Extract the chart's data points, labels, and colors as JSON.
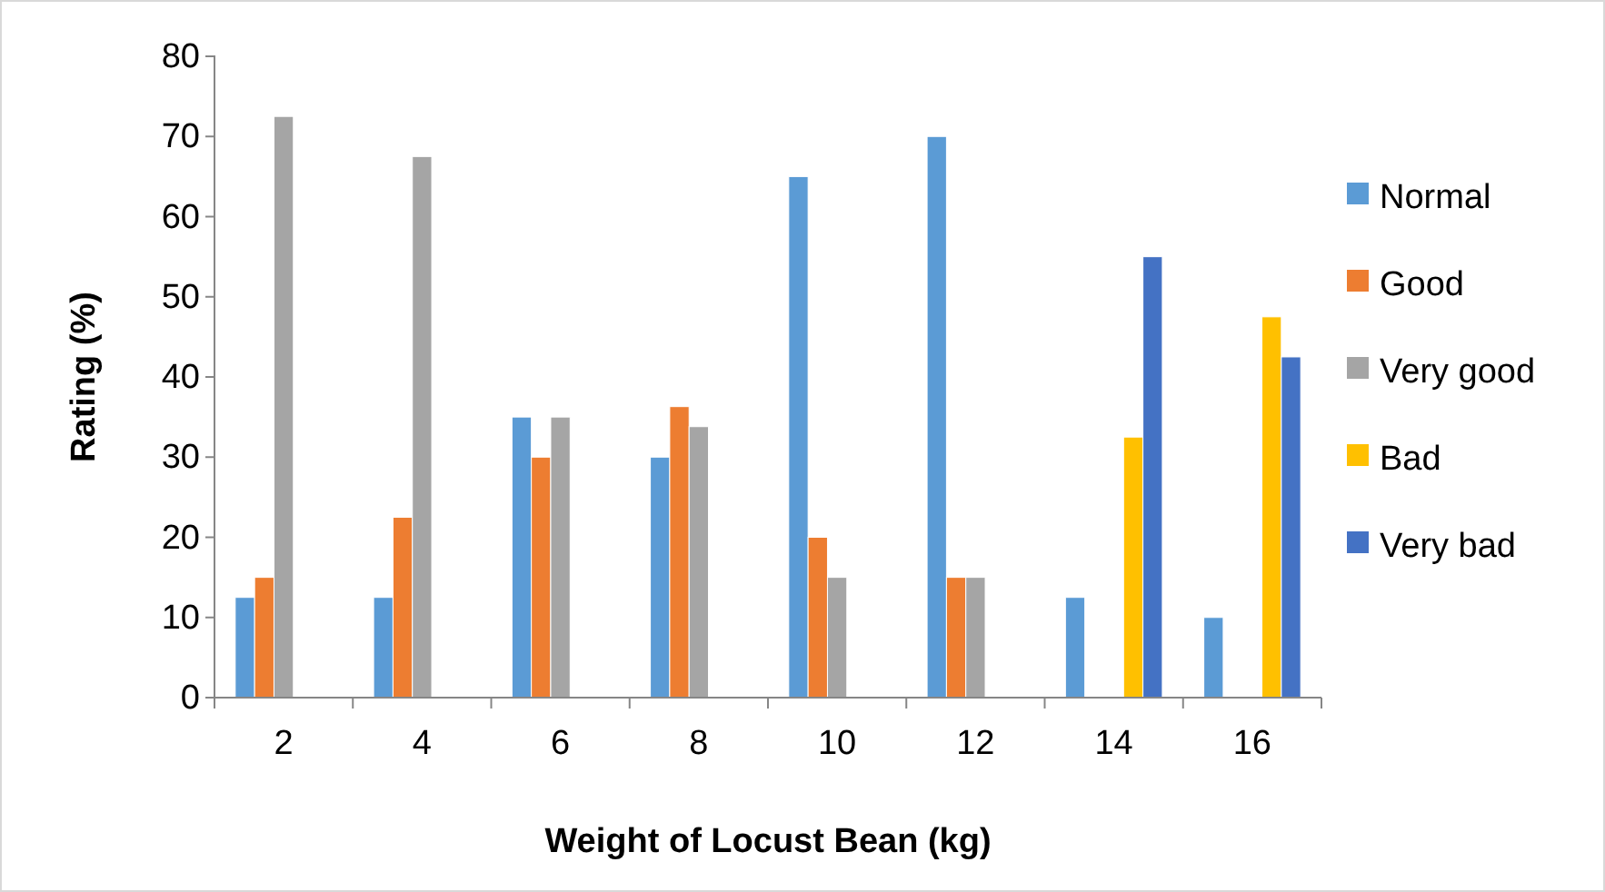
{
  "chart_data": {
    "type": "bar",
    "xlabel": "Weight of Locust Bean (kg)",
    "ylabel": "Rating (%)",
    "categories": [
      "2",
      "4",
      "6",
      "8",
      "10",
      "12",
      "14",
      "16"
    ],
    "series": [
      {
        "name": "Normal",
        "color": "#5b9bd5",
        "values": [
          12.5,
          12.5,
          35,
          30,
          65,
          70,
          12.5,
          10
        ]
      },
      {
        "name": "Good",
        "color": "#ed7d31",
        "values": [
          15,
          22.5,
          30,
          36.3,
          20,
          15,
          null,
          null
        ]
      },
      {
        "name": "Very good",
        "color": "#a5a5a5",
        "values": [
          72.5,
          67.5,
          35,
          33.8,
          15,
          15,
          null,
          null
        ]
      },
      {
        "name": "Bad",
        "color": "#ffc000",
        "values": [
          null,
          null,
          null,
          null,
          null,
          null,
          32.5,
          47.5
        ]
      },
      {
        "name": "Very bad",
        "color": "#4472c4",
        "values": [
          null,
          null,
          null,
          null,
          null,
          null,
          55,
          42.5
        ]
      }
    ],
    "ylim": [
      0,
      80
    ],
    "yticks": [
      0,
      10,
      20,
      30,
      40,
      50,
      60,
      70,
      80
    ],
    "grid": false,
    "legend": "right"
  }
}
